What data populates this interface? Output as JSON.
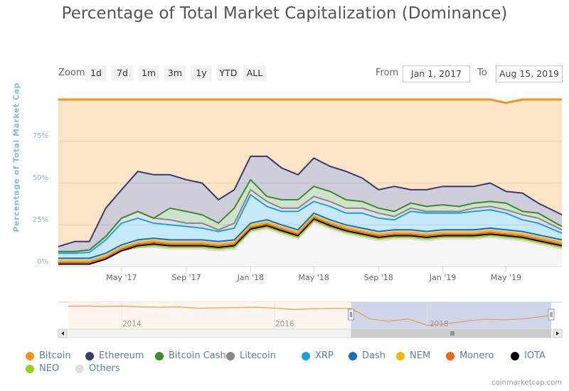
{
  "title": "Percentage of Total Market Capitalization (Dominance)",
  "range_selector": {
    "zoom_label": "Zoom",
    "buttons": [
      "1d",
      "7d",
      "1m",
      "3m",
      "1y",
      "YTD",
      "ALL"
    ],
    "from_label": "From",
    "from_value": "Jan 1, 2017",
    "to_label": "To",
    "to_value": "Aug 15, 2019"
  },
  "credit": "coinmarketcap.com",
  "chart_data": {
    "type": "area",
    "stacking": "percent",
    "title": "Percentage of Total Market Capitalization (Dominance)",
    "ylabel": "Percentage of Total Market Cap",
    "ylim": [
      0,
      100
    ],
    "y_ticks": [
      "0%",
      "25%",
      "50%",
      "75%"
    ],
    "y_tick_values": [
      0,
      25,
      50,
      75
    ],
    "x_ticks": [
      "May '17",
      "Sep '17",
      "Jan '18",
      "May '18",
      "Sep '18",
      "Jan '19",
      "May '19"
    ],
    "x_tick_dates": [
      "2017-05-01",
      "2017-09-01",
      "2018-01-01",
      "2018-05-01",
      "2018-09-01",
      "2019-01-01",
      "2019-05-01"
    ],
    "x_range": [
      "2017-01-01",
      "2019-08-15"
    ],
    "x": [
      "2017-01-01",
      "2017-02-01",
      "2017-03-01",
      "2017-04-01",
      "2017-05-01",
      "2017-06-01",
      "2017-07-01",
      "2017-08-01",
      "2017-09-01",
      "2017-10-01",
      "2017-11-01",
      "2017-12-01",
      "2018-01-01",
      "2018-02-01",
      "2018-03-01",
      "2018-04-01",
      "2018-05-01",
      "2018-06-01",
      "2018-07-01",
      "2018-08-01",
      "2018-09-01",
      "2018-10-01",
      "2018-11-01",
      "2018-12-01",
      "2019-01-01",
      "2019-02-01",
      "2019-03-01",
      "2019-04-01",
      "2019-05-01",
      "2019-06-01",
      "2019-07-01",
      "2019-08-15"
    ],
    "legend_position": "bottom",
    "series": [
      {
        "name": "Bitcoin",
        "color": "#f7931a",
        "values": [
          88,
          85,
          85,
          65,
          54,
          43,
          45,
          45,
          48,
          50,
          60,
          54,
          34,
          34,
          41,
          45,
          35,
          40,
          43,
          47,
          54,
          52,
          54,
          54,
          52,
          52,
          52,
          50,
          53,
          56,
          62,
          69
        ]
      },
      {
        "name": "Ethereum",
        "color": "#3b3b6b",
        "values": [
          3,
          6,
          5,
          17,
          17,
          24,
          26,
          20,
          19,
          19,
          14,
          11,
          14,
          24,
          19,
          15,
          17,
          15,
          17,
          14,
          11,
          15,
          8,
          10,
          11,
          12,
          10,
          11,
          7,
          11,
          6,
          7
        ]
      },
      {
        "name": "Bitcoin Cash",
        "color": "#3e8a2e",
        "values": [
          0,
          0,
          0,
          0,
          0,
          0,
          0,
          7,
          7,
          5,
          4,
          9,
          6,
          3,
          5,
          5,
          6,
          6,
          5,
          4,
          3,
          3,
          3,
          3,
          4,
          3,
          3,
          3,
          4,
          2,
          3,
          2
        ]
      },
      {
        "name": "Litecoin",
        "color": "#888888",
        "values": [
          1,
          1,
          1.5,
          2,
          3,
          4,
          3,
          3,
          2,
          3,
          1,
          3,
          3,
          3,
          2,
          2,
          3,
          3,
          3,
          3,
          3,
          2,
          2,
          1,
          1,
          1,
          2,
          2,
          2,
          3,
          3,
          2
        ]
      },
      {
        "name": "XRP",
        "color": "#1ba3de",
        "values": [
          3,
          3,
          3.5,
          8,
          13,
          13,
          9,
          9,
          8,
          7,
          6,
          7,
          17,
          8,
          8,
          11,
          7,
          8,
          7,
          9,
          8,
          6,
          11,
          11,
          10,
          10,
          11,
          11,
          10,
          7,
          7,
          4
        ]
      },
      {
        "name": "Dash",
        "color": "#1c6fb0",
        "values": [
          1.5,
          1.5,
          1.5,
          1.5,
          1.5,
          1.5,
          1.5,
          1.5,
          1.5,
          1.5,
          1.5,
          1.5,
          1.5,
          1.5,
          1.5,
          1.5,
          1.5,
          1.5,
          1.5,
          1.5,
          1.5,
          1.5,
          1.5,
          1.5,
          1.5,
          1.5,
          1.5,
          1.5,
          1.5,
          1.5,
          1.5,
          1.5
        ]
      },
      {
        "name": "NEM",
        "color": "#f5b700",
        "values": [
          1,
          1,
          1,
          1,
          1,
          1,
          1,
          1,
          1,
          1,
          1,
          1,
          1,
          1,
          1,
          1,
          1,
          1,
          1,
          1,
          1,
          1,
          1,
          1,
          1,
          1,
          1,
          1,
          1,
          1,
          1,
          1
        ]
      },
      {
        "name": "Monero",
        "color": "#f26411",
        "values": [
          1,
          1,
          1,
          1,
          1,
          1,
          1,
          1,
          1,
          1,
          1,
          1,
          1,
          1,
          1,
          1,
          1,
          1,
          1,
          1,
          1,
          1,
          1,
          1,
          1,
          1,
          1,
          1,
          1,
          1,
          1,
          1
        ]
      },
      {
        "name": "IOTA",
        "color": "#000000",
        "values": [
          0,
          0,
          0,
          0,
          0,
          1,
          1,
          1,
          1,
          1,
          1,
          1,
          1,
          1,
          1,
          1,
          1,
          1,
          1,
          1,
          1,
          1,
          1,
          1,
          1,
          1,
          1,
          1,
          1,
          1,
          1,
          1
        ]
      },
      {
        "name": "NEO",
        "color": "#96d11d",
        "values": [
          0,
          0,
          0,
          0,
          0,
          0,
          1,
          1,
          1,
          1,
          1,
          1,
          1,
          1,
          1,
          1,
          1,
          1,
          1,
          1,
          1,
          1,
          1,
          1,
          1,
          1,
          1,
          1,
          1,
          1,
          1,
          1
        ]
      },
      {
        "name": "Others",
        "color": "#dddddd",
        "values": [
          1.5,
          1.5,
          1.5,
          4.5,
          9.5,
          11.5,
          11.5,
          10.5,
          10.5,
          10.5,
          9.5,
          10.5,
          20.5,
          22.5,
          19.5,
          16.5,
          26.5,
          22.5,
          19.5,
          17.5,
          15.5,
          16.5,
          16.5,
          15.5,
          16.5,
          16.5,
          16.5,
          17.5,
          16.5,
          15.5,
          13.5,
          10.5
        ]
      }
    ],
    "navigator": {
      "x_ticks": [
        "2014",
        "2016",
        "2018"
      ],
      "x_tick_years": [
        2014,
        2016,
        2018
      ],
      "x_range_years": [
        2013.3,
        2019.62
      ],
      "selected_range": [
        "2017-01-01",
        "2019-08-15"
      ],
      "series_name": "Bitcoin",
      "years": [
        2013.3,
        2013.5,
        2013.75,
        2014,
        2014.25,
        2014.5,
        2014.75,
        2015,
        2015.25,
        2015.5,
        2015.75,
        2016,
        2016.25,
        2016.5,
        2016.75,
        2017,
        2017.25,
        2017.5,
        2017.75,
        2018,
        2018.25,
        2018.5,
        2018.75,
        2019,
        2019.25,
        2019.62
      ],
      "values": [
        94,
        95,
        93,
        94,
        92,
        91,
        92,
        88,
        89,
        90,
        91,
        88,
        84,
        86,
        87,
        87,
        55,
        48,
        55,
        35,
        40,
        48,
        54,
        52,
        55,
        66
      ]
    }
  }
}
